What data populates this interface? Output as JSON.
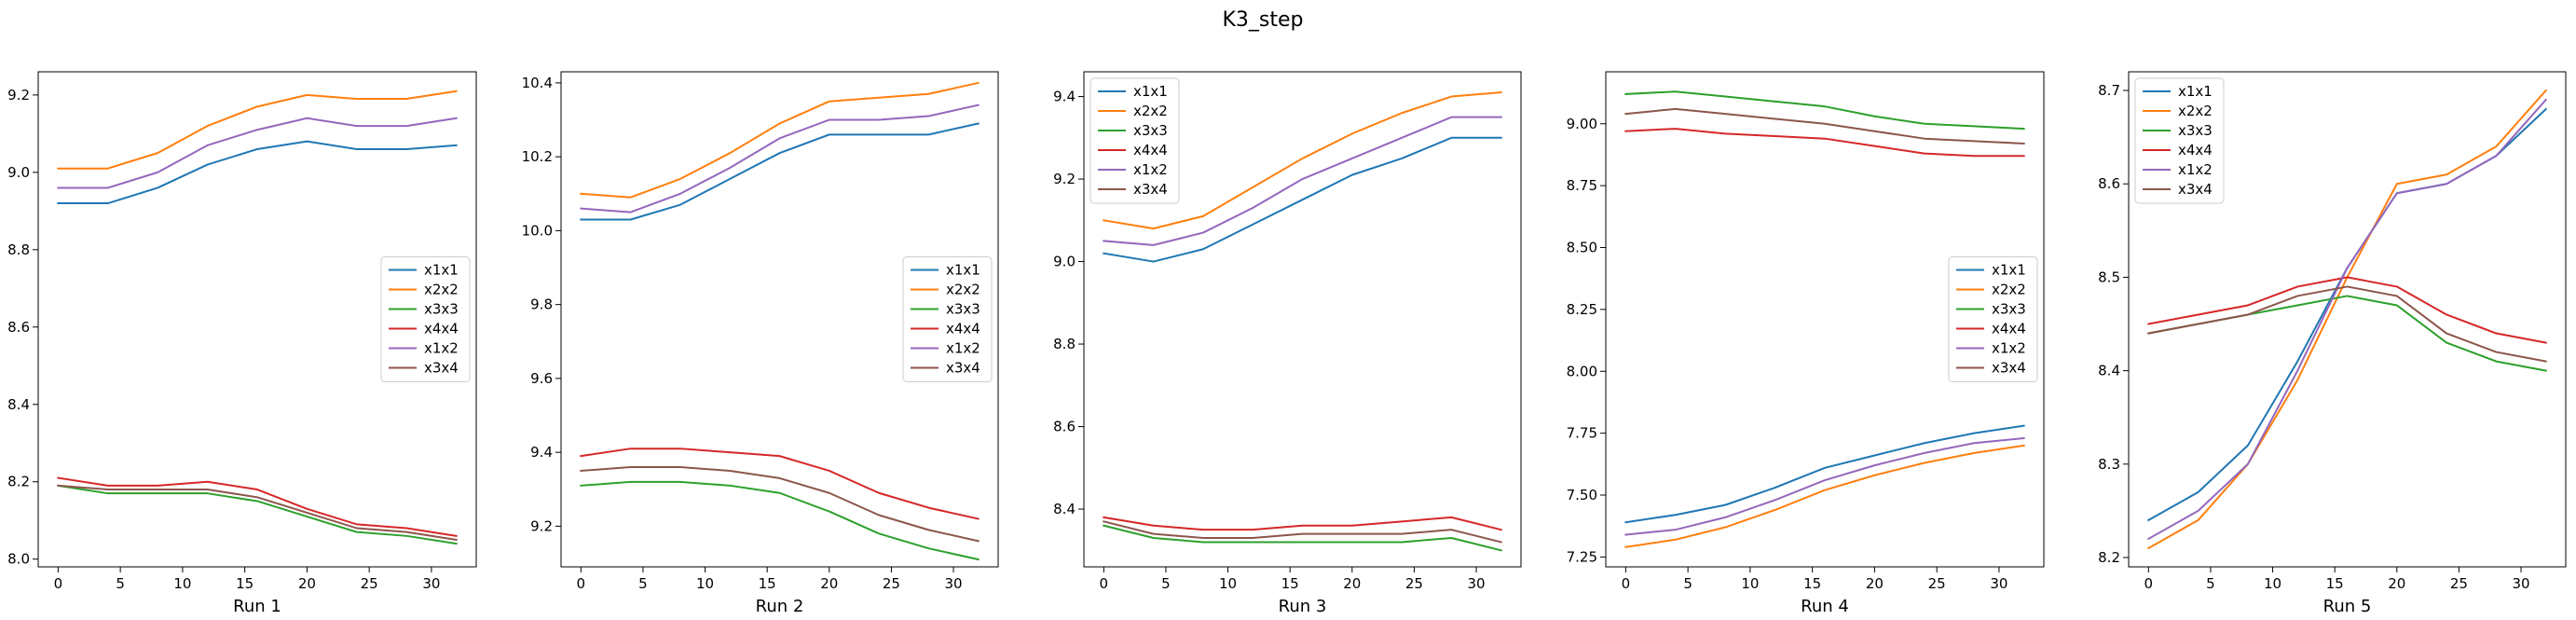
{
  "figure": {
    "title": "K3_step",
    "colors": {
      "x1x1": "#1f77b4",
      "x2x2": "#ff7f0e",
      "x3x3": "#2ca02c",
      "x4x4": "#d62728",
      "x1x2": "#9467bd",
      "x3x4": "#8c564b"
    }
  },
  "chart_data": [
    {
      "type": "line",
      "xlabel": "Run 1",
      "x": [
        0,
        4,
        8,
        12,
        16,
        20,
        24,
        28,
        32
      ],
      "xlim": [
        -1.6,
        33.6
      ],
      "xticks": [
        0,
        5,
        10,
        15,
        20,
        25,
        30
      ],
      "ylim": [
        7.98,
        9.26
      ],
      "yticks": [
        8.0,
        8.2,
        8.4,
        8.6,
        8.8,
        9.0,
        9.2
      ],
      "ytick_labels": [
        "8.0",
        "8.2",
        "8.4",
        "8.6",
        "8.8",
        "9.0",
        "9.2"
      ],
      "legend_loc": "center-right",
      "series": [
        {
          "name": "x1x1",
          "values": [
            8.92,
            8.92,
            8.96,
            9.02,
            9.06,
            9.08,
            9.06,
            9.06,
            9.07
          ]
        },
        {
          "name": "x2x2",
          "values": [
            9.01,
            9.01,
            9.05,
            9.12,
            9.17,
            9.2,
            9.19,
            9.19,
            9.21
          ]
        },
        {
          "name": "x3x3",
          "values": [
            8.19,
            8.17,
            8.17,
            8.17,
            8.15,
            8.11,
            8.07,
            8.06,
            8.04
          ]
        },
        {
          "name": "x4x4",
          "values": [
            8.21,
            8.19,
            8.19,
            8.2,
            8.18,
            8.13,
            8.09,
            8.08,
            8.06
          ]
        },
        {
          "name": "x1x2",
          "values": [
            8.96,
            8.96,
            9.0,
            9.07,
            9.11,
            9.14,
            9.12,
            9.12,
            9.14
          ]
        },
        {
          "name": "x3x4",
          "values": [
            8.19,
            8.18,
            8.18,
            8.18,
            8.16,
            8.12,
            8.08,
            8.07,
            8.05
          ]
        }
      ]
    },
    {
      "type": "line",
      "xlabel": "Run 2",
      "x": [
        0,
        4,
        8,
        12,
        16,
        20,
        24,
        28,
        32
      ],
      "xlim": [
        -1.6,
        33.6
      ],
      "xticks": [
        0,
        5,
        10,
        15,
        20,
        25,
        30
      ],
      "ylim": [
        9.09,
        10.43
      ],
      "yticks": [
        9.2,
        9.4,
        9.6,
        9.8,
        10.0,
        10.2,
        10.4
      ],
      "ytick_labels": [
        "9.2",
        "9.4",
        "9.6",
        "9.8",
        "10.0",
        "10.2",
        "10.4"
      ],
      "legend_loc": "center-right",
      "series": [
        {
          "name": "x1x1",
          "values": [
            10.03,
            10.03,
            10.07,
            10.14,
            10.21,
            10.26,
            10.26,
            10.26,
            10.29
          ]
        },
        {
          "name": "x2x2",
          "values": [
            10.1,
            10.09,
            10.14,
            10.21,
            10.29,
            10.35,
            10.36,
            10.37,
            10.4
          ]
        },
        {
          "name": "x3x3",
          "values": [
            9.31,
            9.32,
            9.32,
            9.31,
            9.29,
            9.24,
            9.18,
            9.14,
            9.11
          ]
        },
        {
          "name": "x4x4",
          "values": [
            9.39,
            9.41,
            9.41,
            9.4,
            9.39,
            9.35,
            9.29,
            9.25,
            9.22
          ]
        },
        {
          "name": "x1x2",
          "values": [
            10.06,
            10.05,
            10.1,
            10.17,
            10.25,
            10.3,
            10.3,
            10.31,
            10.34
          ]
        },
        {
          "name": "x3x4",
          "values": [
            9.35,
            9.36,
            9.36,
            9.35,
            9.33,
            9.29,
            9.23,
            9.19,
            9.16
          ]
        }
      ]
    },
    {
      "type": "line",
      "xlabel": "Run 3",
      "x": [
        0,
        4,
        8,
        12,
        16,
        20,
        24,
        28,
        32
      ],
      "xlim": [
        -1.6,
        33.6
      ],
      "xticks": [
        0,
        5,
        10,
        15,
        20,
        25,
        30
      ],
      "ylim": [
        8.26,
        9.46
      ],
      "yticks": [
        8.4,
        8.6,
        8.8,
        9.0,
        9.2,
        9.4
      ],
      "ytick_labels": [
        "8.4",
        "8.6",
        "8.8",
        "9.0",
        "9.2",
        "9.4"
      ],
      "legend_loc": "top-left",
      "series": [
        {
          "name": "x1x1",
          "values": [
            9.02,
            9.0,
            9.03,
            9.09,
            9.15,
            9.21,
            9.25,
            9.3,
            9.3
          ]
        },
        {
          "name": "x2x2",
          "values": [
            9.1,
            9.08,
            9.11,
            9.18,
            9.25,
            9.31,
            9.36,
            9.4,
            9.41
          ]
        },
        {
          "name": "x3x3",
          "values": [
            8.36,
            8.33,
            8.32,
            8.32,
            8.32,
            8.32,
            8.32,
            8.33,
            8.3
          ]
        },
        {
          "name": "x4x4",
          "values": [
            8.38,
            8.36,
            8.35,
            8.35,
            8.36,
            8.36,
            8.37,
            8.38,
            8.35
          ]
        },
        {
          "name": "x1x2",
          "values": [
            9.05,
            9.04,
            9.07,
            9.13,
            9.2,
            9.25,
            9.3,
            9.35,
            9.35
          ]
        },
        {
          "name": "x3x4",
          "values": [
            8.37,
            8.34,
            8.33,
            8.33,
            8.34,
            8.34,
            8.34,
            8.35,
            8.32
          ]
        }
      ]
    },
    {
      "type": "line",
      "xlabel": "Run 4",
      "x": [
        0,
        4,
        8,
        12,
        16,
        20,
        24,
        28,
        32
      ],
      "xlim": [
        -1.6,
        33.6
      ],
      "xticks": [
        0,
        5,
        10,
        15,
        20,
        25,
        30
      ],
      "ylim": [
        7.21,
        9.21
      ],
      "yticks": [
        7.25,
        7.5,
        7.75,
        8.0,
        8.25,
        8.5,
        8.75,
        9.0
      ],
      "ytick_labels": [
        "7.25",
        "7.50",
        "7.75",
        "8.00",
        "8.25",
        "8.50",
        "8.75",
        "9.00"
      ],
      "legend_loc": "center-right",
      "series": [
        {
          "name": "x1x1",
          "values": [
            7.39,
            7.42,
            7.46,
            7.53,
            7.61,
            7.66,
            7.71,
            7.75,
            7.78
          ]
        },
        {
          "name": "x2x2",
          "values": [
            7.29,
            7.32,
            7.37,
            7.44,
            7.52,
            7.58,
            7.63,
            7.67,
            7.7
          ]
        },
        {
          "name": "x3x3",
          "values": [
            9.12,
            9.13,
            9.11,
            9.09,
            9.07,
            9.03,
            9.0,
            8.99,
            8.98
          ]
        },
        {
          "name": "x4x4",
          "values": [
            8.97,
            8.98,
            8.96,
            8.95,
            8.94,
            8.91,
            8.88,
            8.87,
            8.87
          ]
        },
        {
          "name": "x1x2",
          "values": [
            7.34,
            7.36,
            7.41,
            7.48,
            7.56,
            7.62,
            7.67,
            7.71,
            7.73
          ]
        },
        {
          "name": "x3x4",
          "values": [
            9.04,
            9.06,
            9.04,
            9.02,
            9.0,
            8.97,
            8.94,
            8.93,
            8.92
          ]
        }
      ]
    },
    {
      "type": "line",
      "xlabel": "Run 5",
      "x": [
        0,
        4,
        8,
        12,
        16,
        20,
        24,
        28,
        32
      ],
      "xlim": [
        -1.6,
        33.6
      ],
      "xticks": [
        0,
        5,
        10,
        15,
        20,
        25,
        30
      ],
      "ylim": [
        8.19,
        8.72
      ],
      "yticks": [
        8.2,
        8.3,
        8.4,
        8.5,
        8.6,
        8.7
      ],
      "ytick_labels": [
        "8.2",
        "8.3",
        "8.4",
        "8.5",
        "8.6",
        "8.7"
      ],
      "legend_loc": "top-left",
      "series": [
        {
          "name": "x1x1",
          "values": [
            8.24,
            8.27,
            8.32,
            8.41,
            8.51,
            8.59,
            8.6,
            8.63,
            8.68
          ]
        },
        {
          "name": "x2x2",
          "values": [
            8.21,
            8.24,
            8.3,
            8.39,
            8.5,
            8.6,
            8.61,
            8.64,
            8.7
          ]
        },
        {
          "name": "x3x3",
          "values": [
            8.44,
            8.45,
            8.46,
            8.47,
            8.48,
            8.47,
            8.43,
            8.41,
            8.4
          ]
        },
        {
          "name": "x4x4",
          "values": [
            8.45,
            8.46,
            8.47,
            8.49,
            8.5,
            8.49,
            8.46,
            8.44,
            8.43
          ]
        },
        {
          "name": "x1x2",
          "values": [
            8.22,
            8.25,
            8.3,
            8.4,
            8.51,
            8.59,
            8.6,
            8.63,
            8.69
          ]
        },
        {
          "name": "x3x4",
          "values": [
            8.44,
            8.45,
            8.46,
            8.48,
            8.49,
            8.48,
            8.44,
            8.42,
            8.41
          ]
        }
      ]
    }
  ]
}
